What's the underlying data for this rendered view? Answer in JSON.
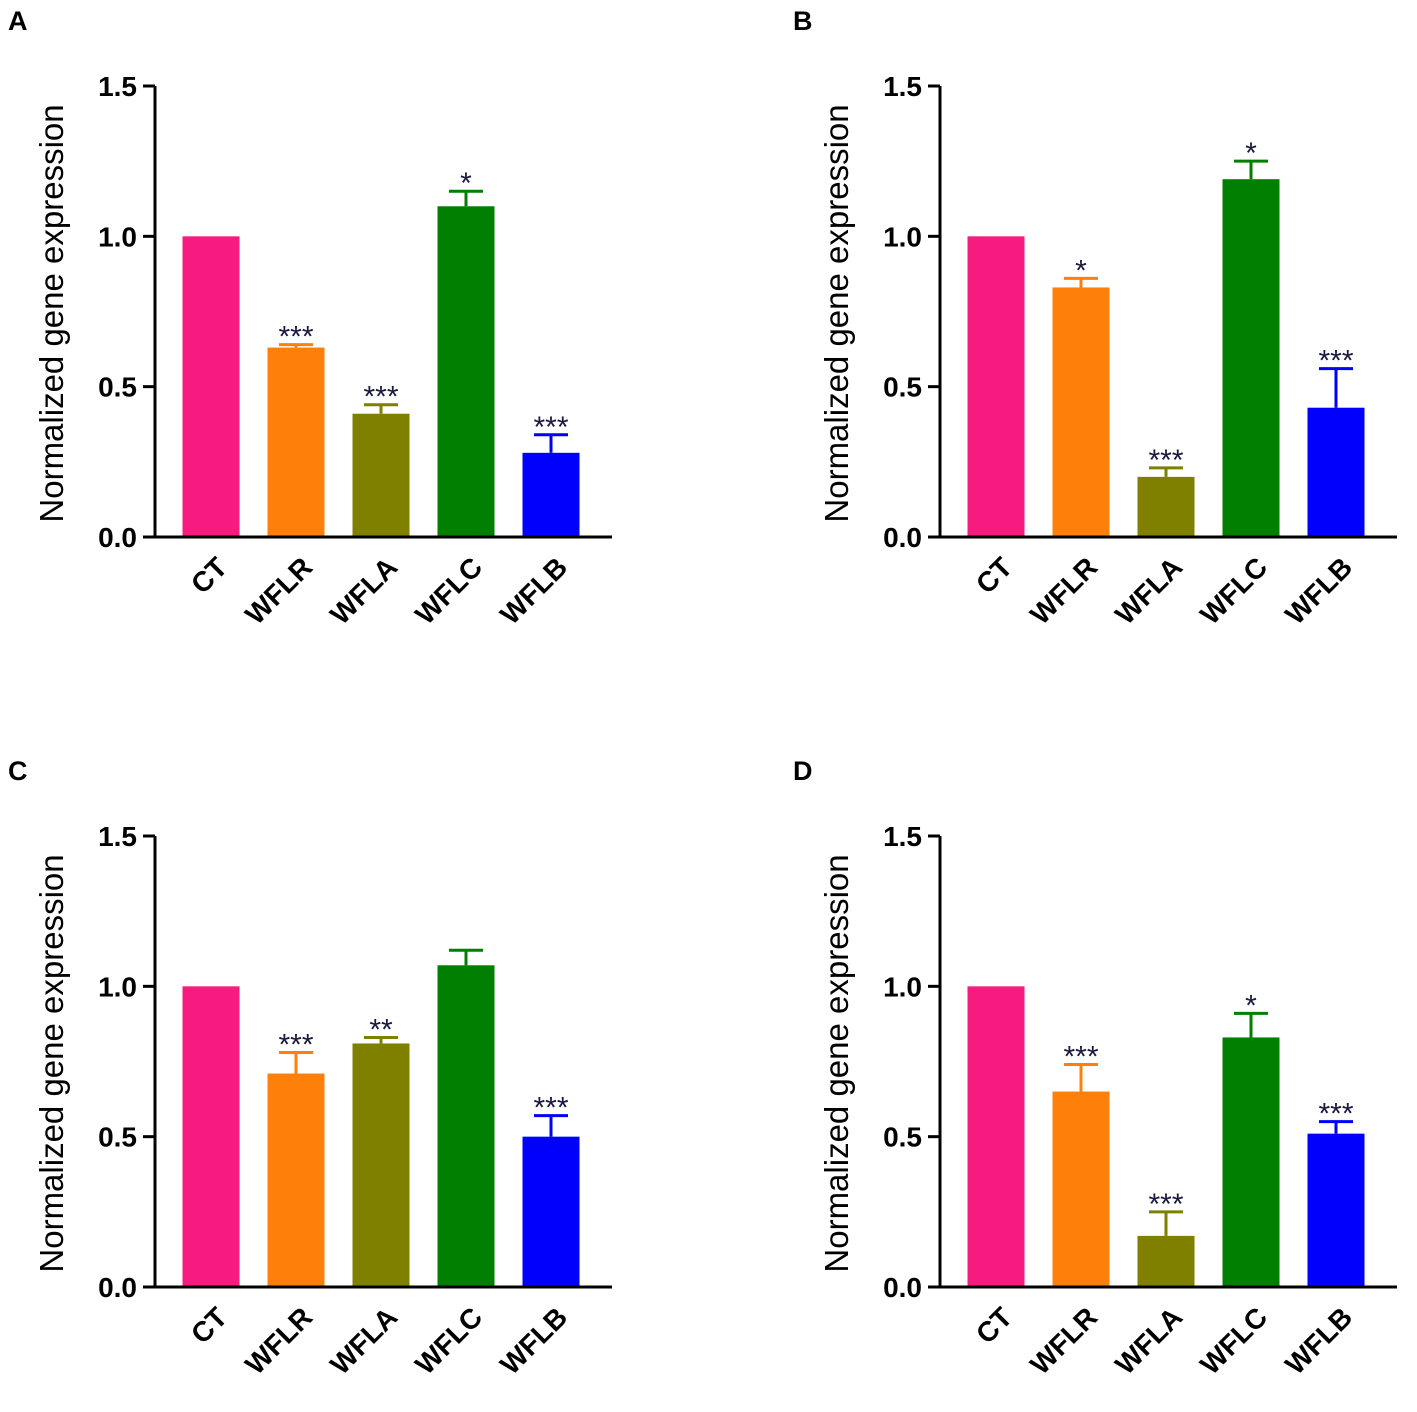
{
  "chart_data": [
    {
      "panel": "A",
      "type": "bar",
      "ylabel": "Normalized gene expression",
      "ylim": [
        0,
        1.5
      ],
      "yticks": [
        "0.0",
        "0.5",
        "1.0",
        "1.5"
      ],
      "categories": [
        "CT",
        "WFLR",
        "WFLA",
        "WFLC",
        "WFLB"
      ],
      "colors": [
        "#f71a7f",
        "#fe800a",
        "#7f7f00",
        "#007f00",
        "#0000fc"
      ],
      "values": [
        1.0,
        0.63,
        0.41,
        1.1,
        0.28
      ],
      "errors": [
        0,
        0.01,
        0.03,
        0.05,
        0.06
      ],
      "significance": [
        "",
        "***",
        "***",
        "*",
        "***"
      ]
    },
    {
      "panel": "B",
      "type": "bar",
      "ylabel": "Normalized gene expression",
      "ylim": [
        0,
        1.5
      ],
      "yticks": [
        "0.0",
        "0.5",
        "1.0",
        "1.5"
      ],
      "categories": [
        "CT",
        "WFLR",
        "WFLA",
        "WFLC",
        "WFLB"
      ],
      "colors": [
        "#f71a7f",
        "#fe800a",
        "#7f7f00",
        "#007f00",
        "#0000fc"
      ],
      "values": [
        1.0,
        0.83,
        0.2,
        1.19,
        0.43
      ],
      "errors": [
        0,
        0.03,
        0.03,
        0.06,
        0.13
      ],
      "significance": [
        "",
        "*",
        "***",
        "*",
        "***"
      ]
    },
    {
      "panel": "C",
      "type": "bar",
      "ylabel": "Normalized gene expression",
      "ylim": [
        0,
        1.5
      ],
      "yticks": [
        "0.0",
        "0.5",
        "1.0",
        "1.5"
      ],
      "categories": [
        "CT",
        "WFLR",
        "WFLA",
        "WFLC",
        "WFLB"
      ],
      "colors": [
        "#f71a7f",
        "#fe800a",
        "#7f7f00",
        "#007f00",
        "#0000fc"
      ],
      "values": [
        1.0,
        0.71,
        0.81,
        1.07,
        0.5
      ],
      "errors": [
        0,
        0.07,
        0.02,
        0.05,
        0.07
      ],
      "significance": [
        "",
        "***",
        "**",
        "",
        "***"
      ]
    },
    {
      "panel": "D",
      "type": "bar",
      "ylabel": "Normalized gene expression",
      "ylim": [
        0,
        1.5
      ],
      "yticks": [
        "0.0",
        "0.5",
        "1.0",
        "1.5"
      ],
      "categories": [
        "CT",
        "WFLR",
        "WFLA",
        "WFLC",
        "WFLB"
      ],
      "colors": [
        "#f71a7f",
        "#fe800a",
        "#7f7f00",
        "#007f00",
        "#0000fc"
      ],
      "values": [
        1.0,
        0.65,
        0.17,
        0.83,
        0.51
      ],
      "errors": [
        0,
        0.09,
        0.08,
        0.08,
        0.04
      ],
      "significance": [
        "",
        "***",
        "***",
        "*",
        "***"
      ]
    }
  ]
}
